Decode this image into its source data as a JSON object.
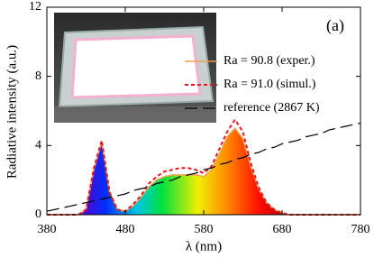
{
  "chart_data": {
    "type": "line",
    "x_label": "λ (nm)",
    "y_label": "Radiative intensity (a.u.)",
    "annotation": "(a)",
    "x": [
      380,
      390,
      400,
      410,
      420,
      430,
      440,
      450,
      460,
      470,
      480,
      490,
      500,
      510,
      520,
      530,
      540,
      550,
      560,
      570,
      580,
      590,
      600,
      610,
      620,
      630,
      640,
      650,
      660,
      670,
      680,
      690,
      700,
      710,
      720,
      730,
      740,
      750,
      760,
      770,
      780
    ],
    "series": [
      {
        "name": "Ra = 90.8 (exper.)",
        "color": "#f0a050",
        "dash": "solid",
        "fill": "spectrum",
        "values": [
          0,
          0,
          0,
          0,
          0,
          0.3,
          2.6,
          4.2,
          1.3,
          0.3,
          0.2,
          0.5,
          1.0,
          1.6,
          2.0,
          2.2,
          2.3,
          2.3,
          2.3,
          2.3,
          2.2,
          2.6,
          3.5,
          4.5,
          5.0,
          4.4,
          2.8,
          1.5,
          0.7,
          0.3,
          0.1,
          0,
          0,
          0,
          0,
          0,
          0,
          0,
          0,
          0,
          0
        ]
      },
      {
        "name": "Ra = 91.0 (simul.)",
        "color": "#e8141e",
        "dash": "dashed",
        "values": [
          0,
          0,
          0,
          0,
          0,
          0.3,
          2.7,
          4.3,
          1.3,
          0.3,
          0.2,
          0.6,
          1.1,
          1.8,
          2.2,
          2.5,
          2.6,
          2.7,
          2.7,
          2.6,
          2.4,
          2.8,
          3.8,
          4.8,
          5.5,
          4.8,
          3.0,
          1.6,
          0.7,
          0.3,
          0.1,
          0,
          0,
          0,
          0,
          0,
          0,
          0,
          0,
          0,
          0
        ]
      },
      {
        "name": "reference (2867 K)",
        "color": "#000000",
        "dash": "longdash",
        "values": [
          0.2,
          0.3,
          0.4,
          0.5,
          0.6,
          0.7,
          0.8,
          0.9,
          1.0,
          1.1,
          1.2,
          1.4,
          1.5,
          1.6,
          1.8,
          1.9,
          2.0,
          2.2,
          2.3,
          2.4,
          2.6,
          2.7,
          2.9,
          3.0,
          3.2,
          3.3,
          3.5,
          3.6,
          3.8,
          3.9,
          4.1,
          4.2,
          4.3,
          4.5,
          4.6,
          4.7,
          4.9,
          5.0,
          5.1,
          5.2,
          5.3
        ]
      }
    ],
    "xlim": [
      380,
      780
    ],
    "xticks": [
      380,
      480,
      580,
      680,
      780
    ],
    "ylim": [
      0,
      12
    ],
    "yticks": [
      0,
      4,
      8,
      12
    ],
    "legend": "upper right"
  }
}
